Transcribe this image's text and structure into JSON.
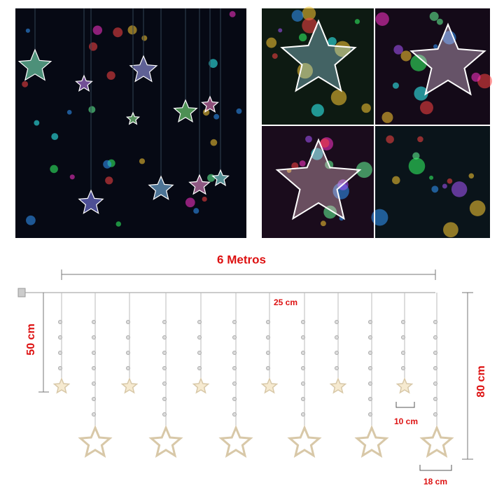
{
  "labels": {
    "width": "6 Metros",
    "spacing": "25 cm",
    "short_drop": "50 cm",
    "long_drop": "80 cm",
    "bulb_gap": "10 cm",
    "star_size": "18 cm"
  }
}
